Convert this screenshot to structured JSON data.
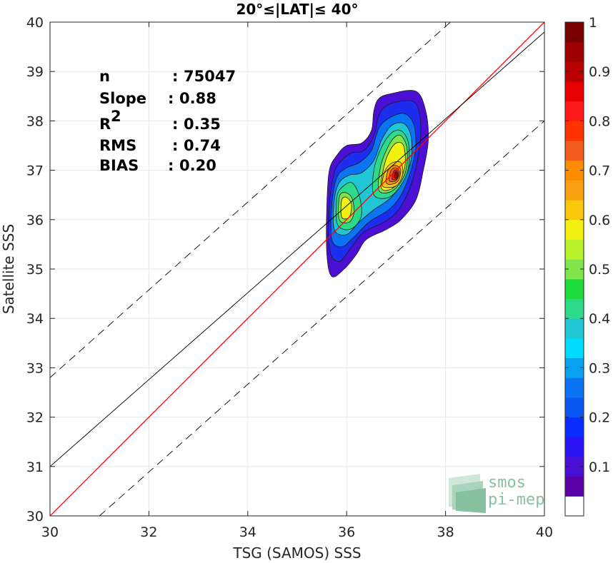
{
  "chart_data": {
    "type": "heatmap",
    "title": "20°≤|LAT|≤ 40°",
    "xlabel": "TSG (SAMOS) SSS",
    "ylabel": "Satellite SSS",
    "xlim": [
      30,
      40
    ],
    "ylim": [
      30,
      40
    ],
    "xticks": [
      "30",
      "32",
      "34",
      "36",
      "38",
      "40"
    ],
    "yticks": [
      "30",
      "31",
      "32",
      "33",
      "34",
      "35",
      "36",
      "37",
      "38",
      "39",
      "40"
    ],
    "grid": true,
    "stats": [
      {
        "label": "n",
        "sep": ": ",
        "value": "75047"
      },
      {
        "label": "Slope",
        "sep": ": ",
        "value": "0.88"
      },
      {
        "label": "R",
        "sup": "2",
        "sep": ": ",
        "value": "0.35"
      },
      {
        "label": "RMS",
        "sep": ": ",
        "value": "0.74"
      },
      {
        "label": "BIAS",
        "sep": ": ",
        "value": "0.20"
      }
    ],
    "lines": [
      {
        "name": "one-to-one",
        "style": "solid",
        "color": "#ff0000",
        "points": [
          [
            30,
            30
          ],
          [
            40,
            40
          ]
        ]
      },
      {
        "name": "fit",
        "style": "solid",
        "color": "#000000",
        "points": [
          [
            30,
            31.0
          ],
          [
            40,
            39.8
          ]
        ]
      },
      {
        "name": "upper-bound",
        "style": "dashed",
        "color": "#000000",
        "points": [
          [
            30,
            32.8
          ],
          [
            38.1,
            40
          ]
        ]
      },
      {
        "name": "lower-bound",
        "style": "dashed",
        "color": "#000000",
        "points": [
          [
            31.0,
            30
          ],
          [
            40,
            38.0
          ]
        ]
      }
    ],
    "contours": [
      {
        "level": 0.05,
        "color": "#4a0fd3",
        "points": [
          [
            35.6,
            35.3
          ],
          [
            35.6,
            36.3
          ],
          [
            35.65,
            37.0
          ],
          [
            35.8,
            37.3
          ],
          [
            36.0,
            37.5
          ],
          [
            36.3,
            37.55
          ],
          [
            36.5,
            37.8
          ],
          [
            36.55,
            38.2
          ],
          [
            36.65,
            38.45
          ],
          [
            36.9,
            38.55
          ],
          [
            37.4,
            38.6
          ],
          [
            37.6,
            38.2
          ],
          [
            37.65,
            37.6
          ],
          [
            37.55,
            37.0
          ],
          [
            37.4,
            36.4
          ],
          [
            37.1,
            36.0
          ],
          [
            36.8,
            35.8
          ],
          [
            36.4,
            35.6
          ],
          [
            36.2,
            35.3
          ],
          [
            35.95,
            35.0
          ],
          [
            35.7,
            34.85
          ]
        ]
      },
      {
        "level": 0.15,
        "color": "#1d2df0",
        "points": [
          [
            35.65,
            35.4
          ],
          [
            35.65,
            36.3
          ],
          [
            35.75,
            36.95
          ],
          [
            35.9,
            37.2
          ],
          [
            36.1,
            37.35
          ],
          [
            36.35,
            37.4
          ],
          [
            36.55,
            37.7
          ],
          [
            36.65,
            38.1
          ],
          [
            36.8,
            38.3
          ],
          [
            37.1,
            38.4
          ],
          [
            37.4,
            38.35
          ],
          [
            37.5,
            37.9
          ],
          [
            37.45,
            37.3
          ],
          [
            37.3,
            36.7
          ],
          [
            37.05,
            36.2
          ],
          [
            36.75,
            35.95
          ],
          [
            36.35,
            35.75
          ],
          [
            36.1,
            35.45
          ],
          [
            35.85,
            35.15
          ]
        ]
      },
      {
        "level": 0.25,
        "color": "#0a74f2",
        "points": [
          [
            35.7,
            35.6
          ],
          [
            35.7,
            36.3
          ],
          [
            35.8,
            36.85
          ],
          [
            36.0,
            37.05
          ],
          [
            36.25,
            37.15
          ],
          [
            36.5,
            37.4
          ],
          [
            36.65,
            37.85
          ],
          [
            36.85,
            38.05
          ],
          [
            37.15,
            38.15
          ],
          [
            37.35,
            37.95
          ],
          [
            37.4,
            37.5
          ],
          [
            37.3,
            37.0
          ],
          [
            37.1,
            36.5
          ],
          [
            36.85,
            36.2
          ],
          [
            36.45,
            35.95
          ],
          [
            36.15,
            35.65
          ],
          [
            35.9,
            35.45
          ]
        ]
      },
      {
        "level": 0.35,
        "color": "#21c6d5",
        "points": [
          [
            35.75,
            35.8
          ],
          [
            35.75,
            36.4
          ],
          [
            35.85,
            36.75
          ],
          [
            36.05,
            36.9
          ],
          [
            36.3,
            36.95
          ],
          [
            36.55,
            37.2
          ],
          [
            36.7,
            37.6
          ],
          [
            36.9,
            37.9
          ],
          [
            37.15,
            37.95
          ],
          [
            37.3,
            37.7
          ],
          [
            37.3,
            37.2
          ],
          [
            37.15,
            36.8
          ],
          [
            36.9,
            36.45
          ],
          [
            36.55,
            36.2
          ],
          [
            36.25,
            35.95
          ],
          [
            36.0,
            35.7
          ]
        ]
      },
      {
        "level": 0.45,
        "color": "#2bdb8a",
        "points": [
          [
            35.8,
            35.95
          ],
          [
            35.8,
            36.45
          ],
          [
            35.9,
            36.65
          ],
          [
            36.1,
            36.75
          ],
          [
            36.25,
            36.5
          ],
          [
            36.3,
            36.1
          ],
          [
            36.15,
            35.85
          ],
          [
            35.95,
            35.8
          ]
        ]
      },
      {
        "level": 0.45,
        "color": "#2bdb8a",
        "points": [
          [
            36.55,
            36.5
          ],
          [
            36.55,
            37.0
          ],
          [
            36.7,
            37.45
          ],
          [
            36.9,
            37.75
          ],
          [
            37.1,
            37.8
          ],
          [
            37.25,
            37.55
          ],
          [
            37.25,
            37.05
          ],
          [
            37.1,
            36.7
          ],
          [
            36.85,
            36.45
          ]
        ]
      },
      {
        "level": 0.55,
        "color": "#7fe54b",
        "points": [
          [
            35.85,
            36.0
          ],
          [
            35.85,
            36.45
          ],
          [
            35.95,
            36.55
          ],
          [
            36.1,
            36.45
          ],
          [
            36.15,
            36.15
          ],
          [
            36.05,
            35.95
          ]
        ]
      },
      {
        "level": 0.55,
        "color": "#7fe54b",
        "points": [
          [
            36.65,
            36.6
          ],
          [
            36.68,
            37.05
          ],
          [
            36.8,
            37.4
          ],
          [
            36.95,
            37.65
          ],
          [
            37.1,
            37.7
          ],
          [
            37.22,
            37.45
          ],
          [
            37.2,
            37.0
          ],
          [
            37.05,
            36.7
          ],
          [
            36.85,
            36.55
          ]
        ]
      },
      {
        "level": 0.62,
        "color": "#f4f012",
        "points": [
          [
            35.9,
            36.05
          ],
          [
            35.9,
            36.4
          ],
          [
            36.0,
            36.45
          ],
          [
            36.1,
            36.3
          ],
          [
            36.05,
            36.05
          ]
        ]
      },
      {
        "level": 0.62,
        "color": "#f4f012",
        "points": [
          [
            36.7,
            36.65
          ],
          [
            36.75,
            37.05
          ],
          [
            36.85,
            37.35
          ],
          [
            37.0,
            37.55
          ],
          [
            37.15,
            37.5
          ],
          [
            37.18,
            37.1
          ],
          [
            37.05,
            36.75
          ],
          [
            36.85,
            36.6
          ]
        ]
      },
      {
        "level": 0.7,
        "color": "#fbc70d",
        "points": [
          [
            36.72,
            36.7
          ],
          [
            36.78,
            37.0
          ],
          [
            36.92,
            37.15
          ],
          [
            37.1,
            37.15
          ],
          [
            37.13,
            36.9
          ],
          [
            37.02,
            36.7
          ],
          [
            36.85,
            36.65
          ]
        ]
      },
      {
        "level": 0.78,
        "color": "#ff8c00",
        "points": [
          [
            36.8,
            36.75
          ],
          [
            36.84,
            37.0
          ],
          [
            36.97,
            37.1
          ],
          [
            37.09,
            37.02
          ],
          [
            37.05,
            36.8
          ],
          [
            36.93,
            36.72
          ]
        ]
      },
      {
        "level": 0.84,
        "color": "#f25c1e",
        "points": [
          [
            36.86,
            36.8
          ],
          [
            36.9,
            37.0
          ],
          [
            37.0,
            37.05
          ],
          [
            37.07,
            36.95
          ],
          [
            37.01,
            36.8
          ],
          [
            36.93,
            36.77
          ]
        ]
      },
      {
        "level": 0.92,
        "color": "#ff1a1a",
        "points": [
          [
            36.92,
            36.82
          ],
          [
            36.95,
            36.98
          ],
          [
            37.02,
            37.0
          ],
          [
            37.05,
            36.9
          ],
          [
            37.0,
            36.82
          ]
        ]
      },
      {
        "level": 0.98,
        "color": "#9e0000",
        "points": [
          [
            36.96,
            36.86
          ],
          [
            36.98,
            36.96
          ],
          [
            37.02,
            36.96
          ],
          [
            37.03,
            36.88
          ],
          [
            37.0,
            36.84
          ]
        ]
      }
    ],
    "colorbar": {
      "range": [
        0,
        1
      ],
      "ticks": [
        "0.1",
        "0.2",
        "0.3",
        "0.4",
        "0.5",
        "0.6",
        "0.7",
        "0.8",
        "0.9",
        "1"
      ],
      "colors": [
        "#ffffff",
        "#5a00a8",
        "#4a0fd3",
        "#2a14f5",
        "#0a2cff",
        "#0a56f2",
        "#0a74f2",
        "#0aa0f0",
        "#00dcff",
        "#21c6d5",
        "#2bdb8a",
        "#1edc3c",
        "#7fe54b",
        "#b8f22a",
        "#f4f012",
        "#fbc70d",
        "#f9a00e",
        "#ff8c00",
        "#f25c1e",
        "#ff3300",
        "#ff1a1a",
        "#e60000",
        "#b80000",
        "#9e0000",
        "#7a0000"
      ]
    }
  },
  "logo": {
    "line1": "smos",
    "line2": "pi-mep"
  }
}
